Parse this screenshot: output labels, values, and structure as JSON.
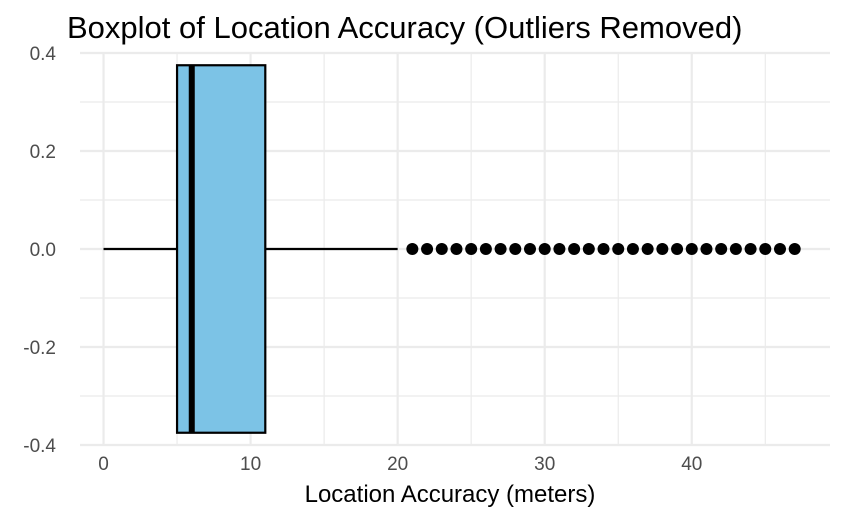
{
  "chart_data": {
    "type": "boxplot",
    "orientation": "horizontal",
    "title": "Boxplot of Location Accuracy (Outliers Removed)",
    "xlabel": "Location Accuracy (meters)",
    "ylabel": "",
    "xlim": [
      -1.6,
      49.4
    ],
    "ylim": [
      -0.4,
      0.4
    ],
    "x_ticks": [
      0,
      10,
      20,
      30,
      40
    ],
    "x_tick_labels": [
      "0",
      "10",
      "20",
      "30",
      "40"
    ],
    "x_minor_ticks": [
      5,
      15,
      25,
      35,
      45
    ],
    "y_ticks": [
      -0.4,
      -0.2,
      0.0,
      0.2,
      0.4
    ],
    "y_tick_labels": [
      "-0.4",
      "-0.2",
      "0.0",
      "0.2",
      "0.4"
    ],
    "y_minor_ticks": [
      -0.3,
      -0.1,
      0.1,
      0.3
    ],
    "grid": true,
    "box": {
      "whisker_low": 0,
      "q1": 5,
      "median": 6,
      "q3": 11,
      "whisker_high": 20,
      "y_center": 0.0,
      "half_width": 0.375
    },
    "outliers": [
      21,
      22,
      23,
      24,
      25,
      26,
      27,
      28,
      29,
      30,
      31,
      32,
      33,
      34,
      35,
      36,
      37,
      38,
      39,
      40,
      41,
      42,
      43,
      44,
      45,
      46,
      47
    ],
    "colors": {
      "box_fill": "#7cc3e6",
      "outline": "#000000",
      "grid": "#ebebeb",
      "tick_text": "#4d4d4d"
    }
  }
}
